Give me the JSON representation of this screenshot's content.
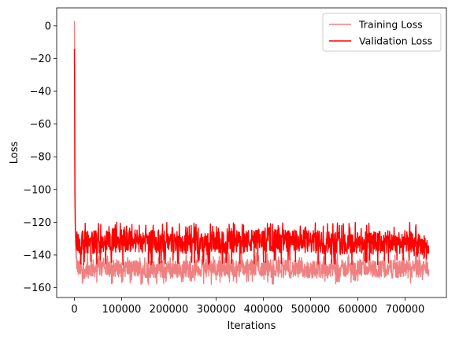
{
  "chart_data": {
    "type": "line",
    "title": "",
    "xlabel": "Iterations",
    "ylabel": "Loss",
    "xlim": [
      -37500,
      787500
    ],
    "ylim": [
      -166,
      11
    ],
    "xticks": [
      0,
      100000,
      200000,
      300000,
      400000,
      500000,
      600000,
      700000
    ],
    "yticks": [
      0,
      -20,
      -40,
      -60,
      -80,
      -100,
      -120,
      -140,
      -160
    ],
    "grid": false,
    "legend_position": "top-right",
    "series": [
      {
        "name": "Training Loss",
        "color": "#f08080",
        "band": [
          -158,
          -138
        ],
        "x": [
          0,
          500,
          1000,
          2000,
          3000,
          5000,
          8000,
          12000,
          20000,
          50000,
          100000,
          200000,
          300000,
          400000,
          500000,
          600000,
          700000,
          750000
        ],
        "y": [
          3,
          -20,
          -85,
          -125,
          -138,
          -146,
          -148,
          -148,
          -149,
          -148,
          -148,
          -149,
          -148,
          -148,
          -149,
          -148,
          -149,
          -148
        ]
      },
      {
        "name": "Validation Loss",
        "color": "#ff0000",
        "band": [
          -146,
          -120
        ],
        "x": [
          0,
          500,
          1000,
          2000,
          3000,
          5000,
          8000,
          12000,
          20000,
          50000,
          100000,
          200000,
          300000,
          400000,
          500000,
          600000,
          700000,
          750000
        ],
        "y": [
          -14,
          -40,
          -100,
          -125,
          -130,
          -132,
          -133,
          -133,
          -132,
          -132,
          -131,
          -132,
          -133,
          -131,
          -132,
          -133,
          -132,
          -136
        ]
      }
    ]
  }
}
